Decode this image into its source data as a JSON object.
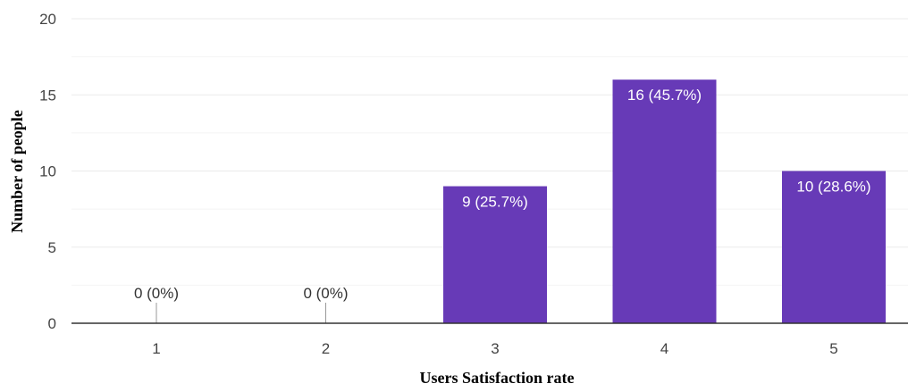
{
  "chart_data": {
    "type": "bar",
    "categories": [
      "1",
      "2",
      "3",
      "4",
      "5"
    ],
    "values": [
      0,
      0,
      9,
      16,
      10
    ],
    "data_labels": [
      "0 (0%)",
      "0 (0%)",
      "9 (25.7%)",
      "16 (45.7%)",
      "10 (28.6%)"
    ],
    "title": "",
    "xlabel": "Users Satisfaction rate",
    "ylabel": "Number of people",
    "ylim": [
      0,
      20
    ],
    "yticks": [
      "0",
      "5",
      "10",
      "15",
      "20"
    ],
    "grid": true,
    "legend": "none",
    "colors": {
      "bar": "#673ab7",
      "grid": "#ebebeb",
      "minor_grid": "#f4f4f4",
      "axis": "#333333"
    }
  }
}
